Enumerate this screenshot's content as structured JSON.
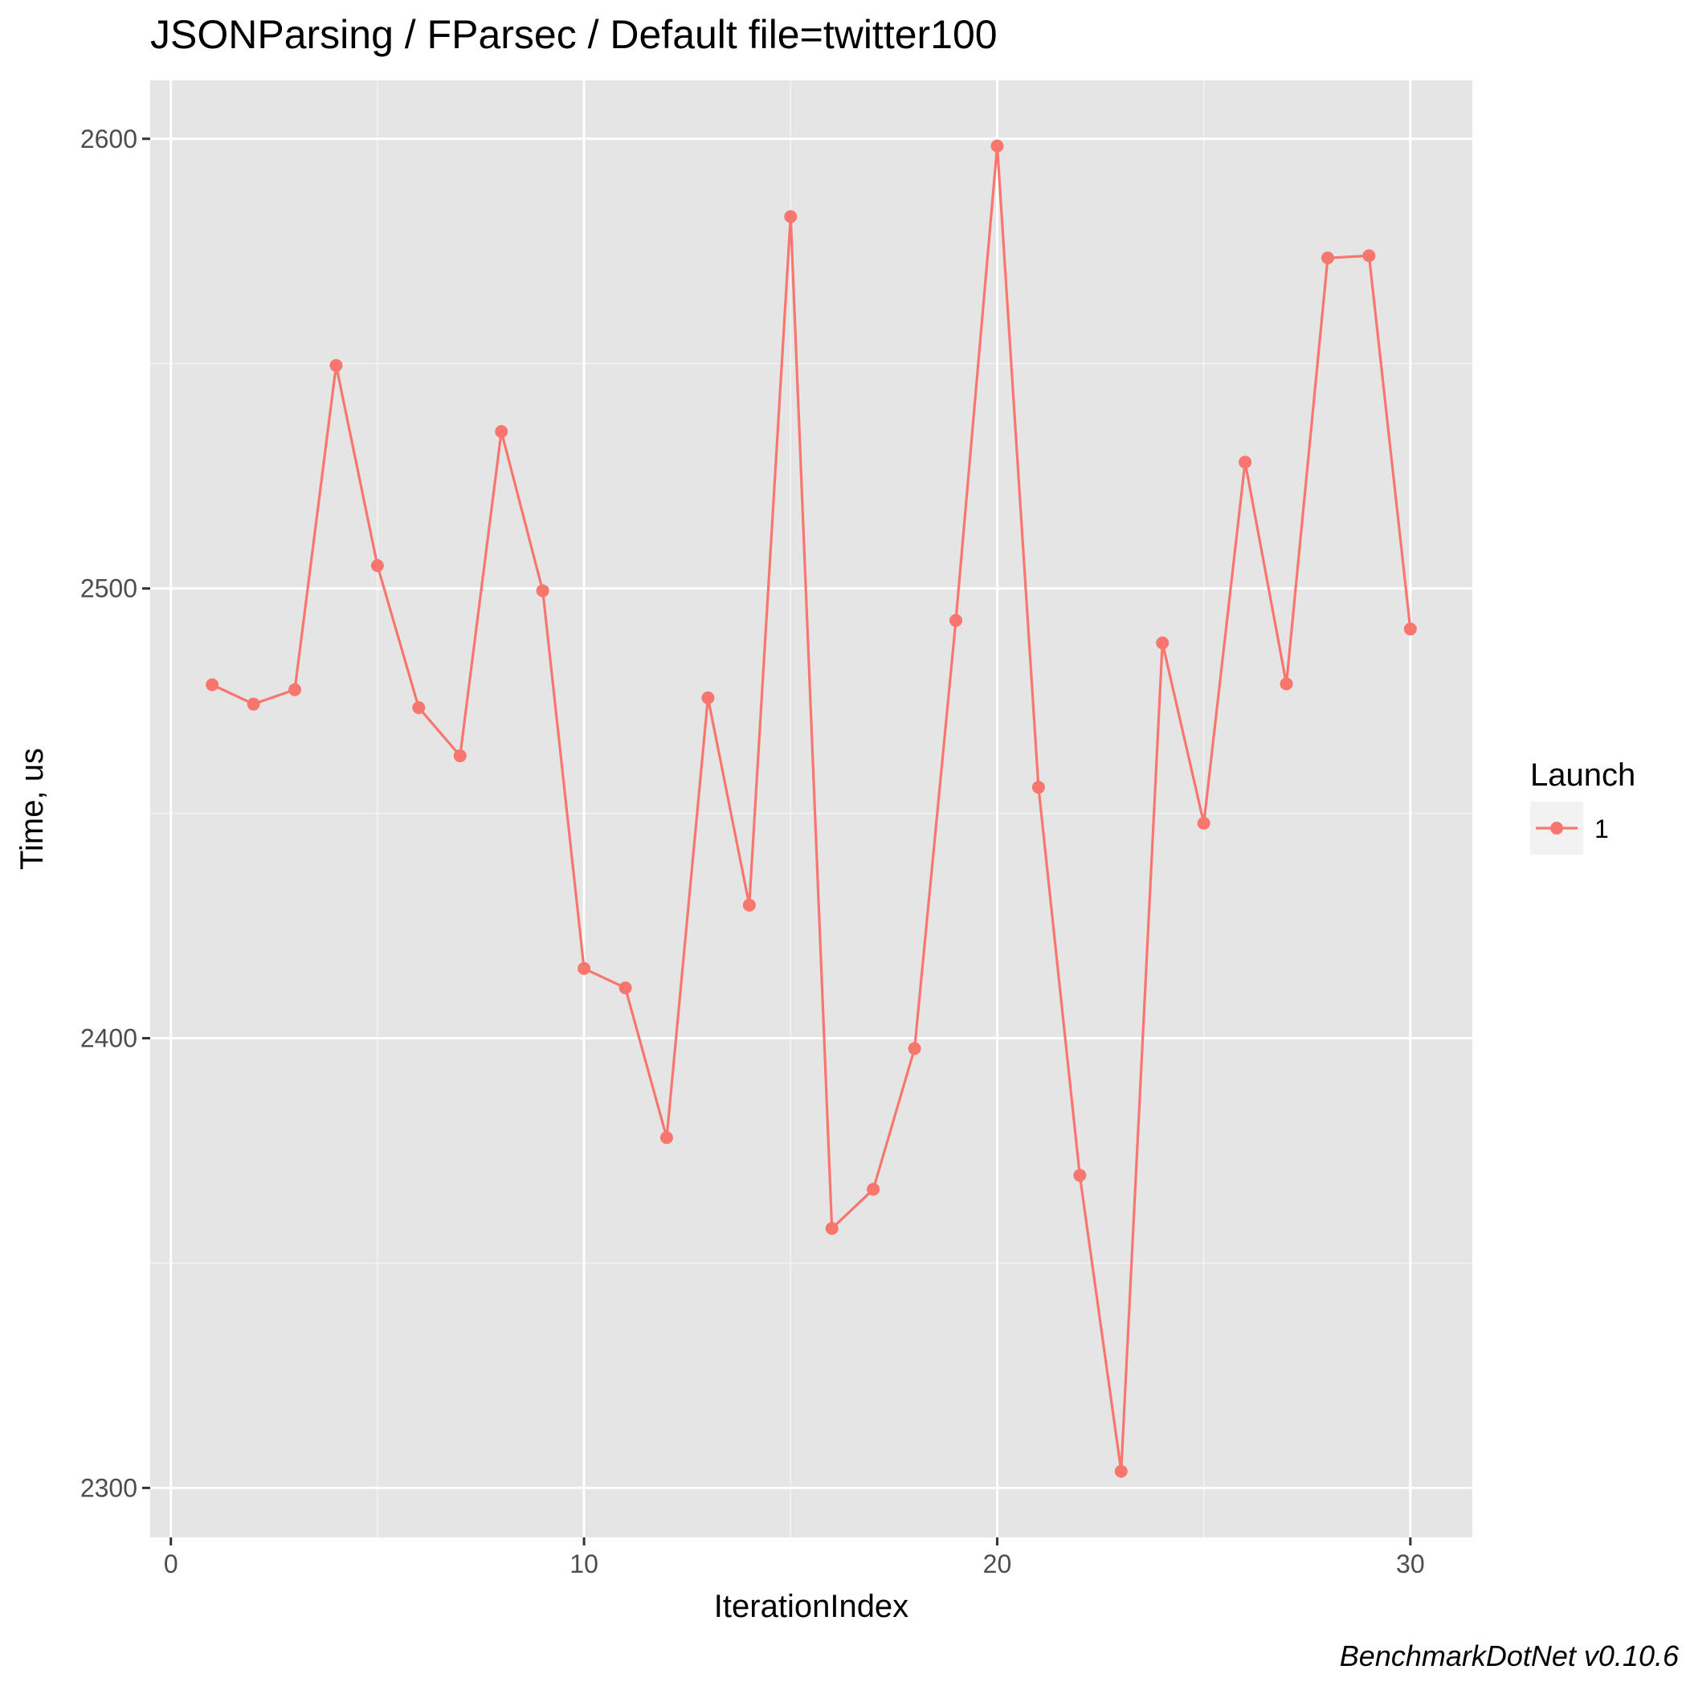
{
  "chart_data": {
    "type": "line",
    "title": "JSONParsing / FParsec / Default file=twitter100",
    "xlabel": "IterationIndex",
    "ylabel": "Time, us",
    "caption": "BenchmarkDotNet v0.10.6",
    "xlim": [
      -0.5,
      31.5
    ],
    "ylim": [
      2289,
      2613
    ],
    "x_ticks": [
      0,
      10,
      20,
      30
    ],
    "x_tick_labels": [
      "0",
      "10",
      "20",
      "30"
    ],
    "y_ticks": [
      2300,
      2400,
      2500,
      2600
    ],
    "y_tick_labels": [
      "2300",
      "2400",
      "2500",
      "2600"
    ],
    "grid": true,
    "legend": {
      "title": "Launch",
      "position": "right"
    },
    "series": [
      {
        "name": "1",
        "color": "#F8766D",
        "x": [
          1,
          2,
          3,
          4,
          5,
          6,
          7,
          8,
          9,
          10,
          11,
          12,
          13,
          14,
          15,
          16,
          17,
          18,
          19,
          20,
          21,
          22,
          23,
          24,
          25,
          26,
          27,
          28,
          29,
          30
        ],
        "values": [
          2478.6,
          2474.3,
          2477.5,
          2549.6,
          2505.1,
          2473.5,
          2462.8,
          2534.9,
          2499.5,
          2415.5,
          2411.2,
          2377.9,
          2475.7,
          2429.6,
          2582.7,
          2357.7,
          2366.4,
          2397.7,
          2492.9,
          2598.4,
          2455.8,
          2369.5,
          2303.7,
          2487.9,
          2447.8,
          2528.1,
          2478.8,
          2573.5,
          2574.0,
          2491.0
        ]
      }
    ]
  }
}
